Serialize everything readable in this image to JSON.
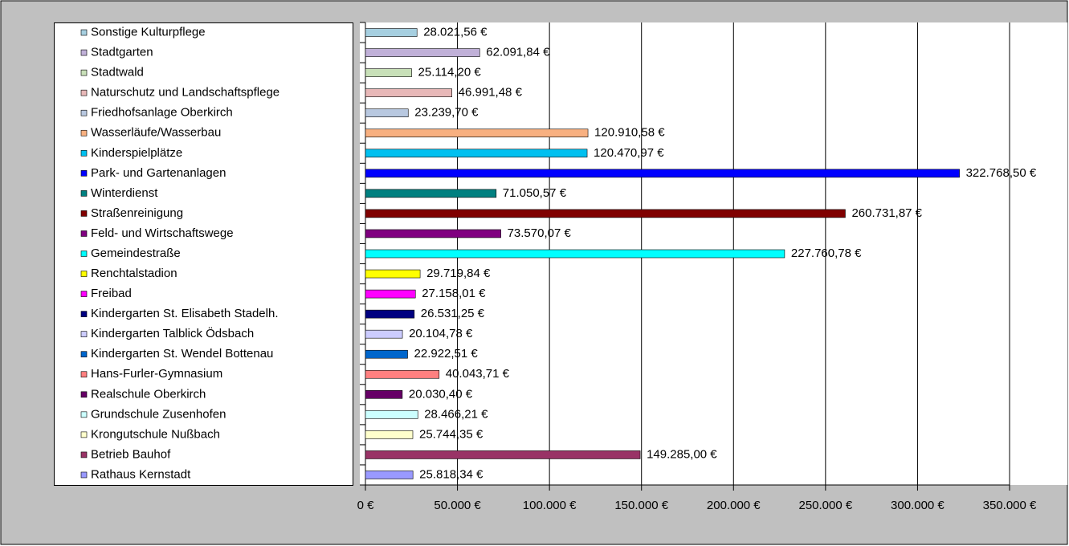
{
  "chart_data": {
    "type": "bar",
    "orientation": "horizontal",
    "categories": [
      "Sonstige Kulturpflege",
      "Stadtgarten",
      "Stadtwald",
      "Naturschutz und Landschaftspflege",
      "Friedhofsanlage Oberkirch",
      "Wasserläufe/Wasserbau",
      "Kinderspielplätze",
      "Park- und Gartenanlagen",
      "Winterdienst",
      "Straßenreinigung",
      "Feld- und Wirtschaftswege",
      "Gemeindestraße",
      "Renchtalstadion",
      "Freibad",
      "Kindergarten St. Elisabeth Stadelh.",
      "Kindergarten Talblick Ödsbach",
      "Kindergarten St. Wendel Bottenau",
      "Hans-Furler-Gymnasium",
      "Realschule Oberkirch",
      "Grundschule Zusenhofen",
      "Krongutschule Nußbach",
      "Betrieb Bauhof",
      "Rathaus Kernstadt"
    ],
    "values": [
      28021.56,
      62091.84,
      25114.2,
      46991.48,
      23239.7,
      120910.58,
      120470.97,
      322768.5,
      71050.57,
      260731.87,
      73570.07,
      227760.78,
      29719.84,
      27158.01,
      26531.25,
      20104.78,
      22922.51,
      40043.71,
      20030.4,
      28466.21,
      25744.35,
      149285.0,
      25818.34
    ],
    "value_labels": [
      "28.021,56 €",
      "62.091,84 €",
      "25.114,20 €",
      "46.991,48 €",
      "23.239,70 €",
      "120.910,58 €",
      "120.470,97 €",
      "322.768,50 €",
      "71.050,57 €",
      "260.731,87 €",
      "73.570,07 €",
      "227.760,78 €",
      "29.719,84 €",
      "27.158,01 €",
      "26.531,25 €",
      "20.104,78 €",
      "22.922,51 €",
      "40.043,71 €",
      "20.030,40 €",
      "28.466,21 €",
      "25.744,35 €",
      "149.285,00 €",
      "25.818,34 €"
    ],
    "colors": [
      "#a6cfe0",
      "#c0b0d8",
      "#c8e0b8",
      "#e8b8b8",
      "#b8c8e0",
      "#f8b080",
      "#00c0f0",
      "#0000ff",
      "#008080",
      "#800000",
      "#800080",
      "#00ffff",
      "#ffff00",
      "#ff00ff",
      "#000080",
      "#ccccff",
      "#0066cc",
      "#ff8080",
      "#660066",
      "#ccffff",
      "#ffffcc",
      "#993366",
      "#9999ff"
    ],
    "xlim": [
      0,
      350000
    ],
    "xticks": [
      {
        "value": 0,
        "label": "0 €"
      },
      {
        "value": 50000,
        "label": "50.000 €"
      },
      {
        "value": 100000,
        "label": "100.000 €"
      },
      {
        "value": 150000,
        "label": "150.000 €"
      },
      {
        "value": 200000,
        "label": "200.000 €"
      },
      {
        "value": 250000,
        "label": "250.000 €"
      },
      {
        "value": 300000,
        "label": "300.000 €"
      },
      {
        "value": 350000,
        "label": "350.000 €"
      }
    ],
    "grid": true,
    "legend": "left"
  }
}
